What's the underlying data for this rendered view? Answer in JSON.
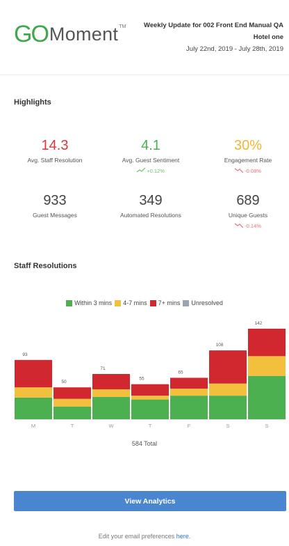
{
  "brand": {
    "logo_go": "GO",
    "logo_moment": "Moment",
    "logo_tm": "TM"
  },
  "header": {
    "title": "Weekly Update for 002 Front End Manual QA",
    "hotel": "Hotel one",
    "dates": "July 22nd, 2019 - July 28th, 2019"
  },
  "highlights": {
    "title": "Highlights",
    "metrics": [
      {
        "value": "14.3",
        "label": "Avg. Staff Resolution",
        "change": "",
        "color": "#e0353d"
      },
      {
        "value": "4.1",
        "label": "Avg. Guest Sentiment",
        "change": "+0.12%",
        "trend": "up",
        "color": "#4caf50"
      },
      {
        "value": "30%",
        "label": "Engagement Rate",
        "change": "-0.08%",
        "trend": "down",
        "color": "#f2b533"
      },
      {
        "value": "933",
        "label": "Guest Messages",
        "change": "",
        "color": "#444444"
      },
      {
        "value": "349",
        "label": "Automated Resolutions",
        "change": "",
        "color": "#444444"
      },
      {
        "value": "689",
        "label": "Unique Guests",
        "change": "-0.14%",
        "trend": "down",
        "color": "#444444"
      }
    ]
  },
  "staff_resolutions": {
    "title": "Staff Resolutions",
    "total_label": "584 Total"
  },
  "chart_data": {
    "type": "bar",
    "stacked": true,
    "categories": [
      "M",
      "T",
      "W",
      "T",
      "F",
      "S",
      "S"
    ],
    "totals": [
      93,
      50,
      71,
      55,
      65,
      108,
      142
    ],
    "series": [
      {
        "name": "Within 3 mins",
        "color": "#4caf50",
        "values": [
          34,
          20,
          35,
          31,
          37,
          37,
          68
        ]
      },
      {
        "name": "4-7 mins",
        "color": "#f2c03d",
        "values": [
          16,
          12,
          12,
          6,
          11,
          19,
          31
        ]
      },
      {
        "name": "7+ mins",
        "color": "#d0282e",
        "values": [
          43,
          18,
          24,
          18,
          17,
          52,
          43
        ]
      },
      {
        "name": "Unresolved",
        "color": "#9aa5b1",
        "values": [
          0,
          0,
          0,
          0,
          0,
          0,
          0
        ]
      }
    ],
    "ylim": [
      0,
      142
    ],
    "legend": "top"
  },
  "cta": {
    "label": "View Analytics"
  },
  "footer": {
    "text": "Edit your email preferences ",
    "link": "here",
    "end": "."
  }
}
